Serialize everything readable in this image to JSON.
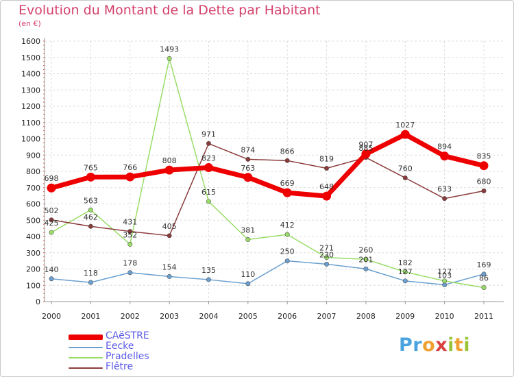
{
  "chart_data": {
    "type": "line",
    "title": "Evolution du Montant de la Dette par Habitant",
    "subtitle": "(en €)",
    "categories": [
      "2000",
      "2001",
      "2002",
      "2003",
      "2004",
      "2005",
      "2006",
      "2007",
      "2008",
      "2009",
      "2010",
      "2011"
    ],
    "ylim": [
      0,
      1600
    ],
    "yticks": [
      0,
      100,
      200,
      300,
      400,
      500,
      600,
      700,
      800,
      900,
      1000,
      1100,
      1200,
      1300,
      1400,
      1500,
      1600
    ],
    "grid": true,
    "legend_position": "bottom-left",
    "series": [
      {
        "name": "CAëSTRE",
        "color": "#ee0000",
        "values": [
          698,
          765,
          766,
          808,
          823,
          763,
          669,
          648,
          907,
          1027,
          894,
          835
        ]
      },
      {
        "name": "Eecke",
        "color": "#6a9fd0",
        "values": [
          140,
          118,
          178,
          154,
          135,
          110,
          250,
          230,
          201,
          127,
          103,
          169
        ]
      },
      {
        "name": "Pradelles",
        "color": "#99dd66",
        "values": [
          425,
          563,
          352,
          1493,
          615,
          381,
          412,
          271,
          260,
          182,
          127,
          86
        ]
      },
      {
        "name": "Flêtre",
        "color": "#8b3a3a",
        "values": [
          502,
          462,
          431,
          405,
          971,
          874,
          866,
          819,
          885,
          760,
          633,
          680
        ]
      }
    ],
    "data_labels": [
      {
        "series": 0,
        "values": [
          "698",
          "765",
          "766",
          "808",
          "823",
          "763",
          "669",
          "648",
          "907",
          "1027",
          "894",
          "835"
        ]
      },
      {
        "series": 1,
        "values": [
          "140",
          "118",
          "178",
          "154",
          "135",
          "110",
          "250",
          "230",
          "201",
          "127",
          "103",
          "169"
        ]
      },
      {
        "series": 2,
        "values": [
          "425",
          "563",
          "352",
          "1493",
          "615",
          "381",
          "412",
          "271",
          "260",
          "182",
          "127",
          "86"
        ]
      },
      {
        "series": 3,
        "values": [
          "502",
          "462",
          "431",
          "405",
          "971",
          "874",
          "866",
          "819",
          "885",
          "760",
          "633",
          "680"
        ]
      }
    ]
  },
  "branding": {
    "logo_text": "Proxiti"
  }
}
